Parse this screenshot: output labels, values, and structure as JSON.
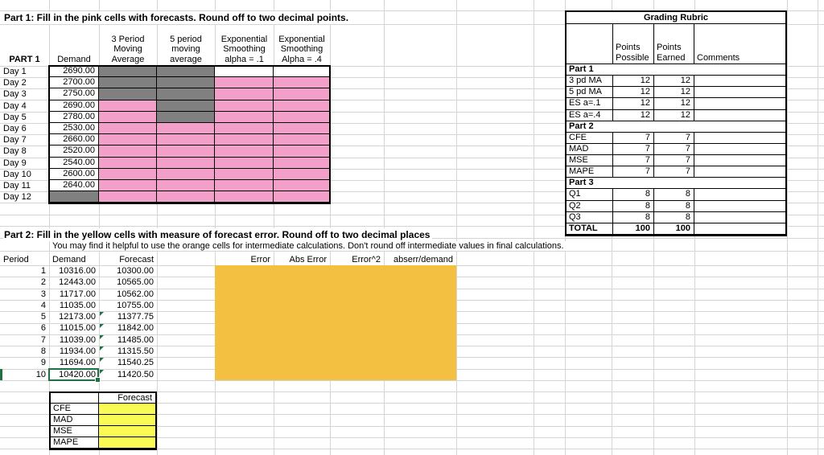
{
  "colors": {
    "pink": "#F2A0CA",
    "gray": "#808080",
    "orange": "#F4C042",
    "yellow": "#FAFA55",
    "selection_green": "#1E7145",
    "gridline": "#D4D4D4"
  },
  "part1": {
    "title": "Part 1:  Fill in the pink cells with forecasts.  Round off to two decimal points.",
    "corner_label": "PART 1",
    "headers": {
      "demand": "Demand",
      "ma3": "3 Period\nMoving\nAverage",
      "ma5": "5 period\nmoving\naverage",
      "es1": "Exponential\nSmoothing\nalpha = .1",
      "es4": "Exponential\nSmoothing\nAlpha = .4"
    },
    "days": [
      {
        "label": "Day 1",
        "demand": "2690.00"
      },
      {
        "label": "Day 2",
        "demand": "2700.00"
      },
      {
        "label": "Day 3",
        "demand": "2750.00"
      },
      {
        "label": "Day 4",
        "demand": "2690.00"
      },
      {
        "label": "Day 5",
        "demand": "2780.00"
      },
      {
        "label": "Day 6",
        "demand": "2530.00"
      },
      {
        "label": "Day 7",
        "demand": "2660.00"
      },
      {
        "label": "Day 8",
        "demand": "2520.00"
      },
      {
        "label": "Day 9",
        "demand": "2540.00"
      },
      {
        "label": "Day 10",
        "demand": "2600.00"
      },
      {
        "label": "Day 11",
        "demand": "2640.00"
      },
      {
        "label": "Day 12",
        "demand": ""
      }
    ]
  },
  "rubric": {
    "title": "Grading Rubric",
    "headers": {
      "possible": "Points\nPossible",
      "earned": "Points\nEarned",
      "comments": "Comments"
    },
    "rows": [
      {
        "label": "Part 1"
      },
      {
        "label": "3 pd MA",
        "possible": "12",
        "earned": "12"
      },
      {
        "label": "5 pd MA",
        "possible": "12",
        "earned": "12"
      },
      {
        "label": "ES a=.1",
        "possible": "12",
        "earned": "12"
      },
      {
        "label": "ES a=.4",
        "possible": "12",
        "earned": "12"
      },
      {
        "label": "Part 2"
      },
      {
        "label": "CFE",
        "possible": "7",
        "earned": "7"
      },
      {
        "label": "MAD",
        "possible": "7",
        "earned": "7"
      },
      {
        "label": "MSE",
        "possible": "7",
        "earned": "7"
      },
      {
        "label": "MAPE",
        "possible": "7",
        "earned": "7"
      },
      {
        "label": "Part 3"
      },
      {
        "label": "Q1",
        "possible": "8",
        "earned": "8"
      },
      {
        "label": "Q2",
        "possible": "8",
        "earned": "8"
      },
      {
        "label": "Q3",
        "possible": "8",
        "earned": "8"
      },
      {
        "label": "TOTAL",
        "possible": "100",
        "earned": "100"
      }
    ]
  },
  "part2": {
    "title": "Part 2:  Fill in the yellow cells with measure of forecast error.  Round off to two decimal places",
    "note": "You may find it helpful to use the orange cells for intermediate calculations.  Don't round off intermediate values in final calculations.",
    "headers": {
      "period": "Period",
      "demand": "Demand",
      "forecast": "Forecast",
      "error": "Error",
      "abs_error": "Abs Error",
      "error_sq": "Error^2",
      "abserr_demand": "abserr/demand"
    },
    "rows": [
      {
        "period": "1",
        "demand": "10316.00",
        "forecast": "10300.00"
      },
      {
        "period": "2",
        "demand": "12443.00",
        "forecast": "10565.00"
      },
      {
        "period": "3",
        "demand": "11717.00",
        "forecast": "10562.00"
      },
      {
        "period": "4",
        "demand": "11035.00",
        "forecast": "10755.00"
      },
      {
        "period": "5",
        "demand": "12173.00",
        "forecast": "11377.75"
      },
      {
        "period": "6",
        "demand": "11015.00",
        "forecast": "11842.00"
      },
      {
        "period": "7",
        "demand": "11039.00",
        "forecast": "11485.00"
      },
      {
        "period": "8",
        "demand": "11934.00",
        "forecast": "11315.50"
      },
      {
        "period": "9",
        "demand": "11694.00",
        "forecast": "11540.25"
      },
      {
        "period": "10",
        "demand": "10420.00",
        "forecast": "11420.50"
      }
    ],
    "selected_cell_value": "10420.00",
    "summary": {
      "header": "Forecast",
      "rows": [
        {
          "label": "CFE"
        },
        {
          "label": "MAD"
        },
        {
          "label": "MSE"
        },
        {
          "label": "MAPE"
        }
      ]
    }
  }
}
